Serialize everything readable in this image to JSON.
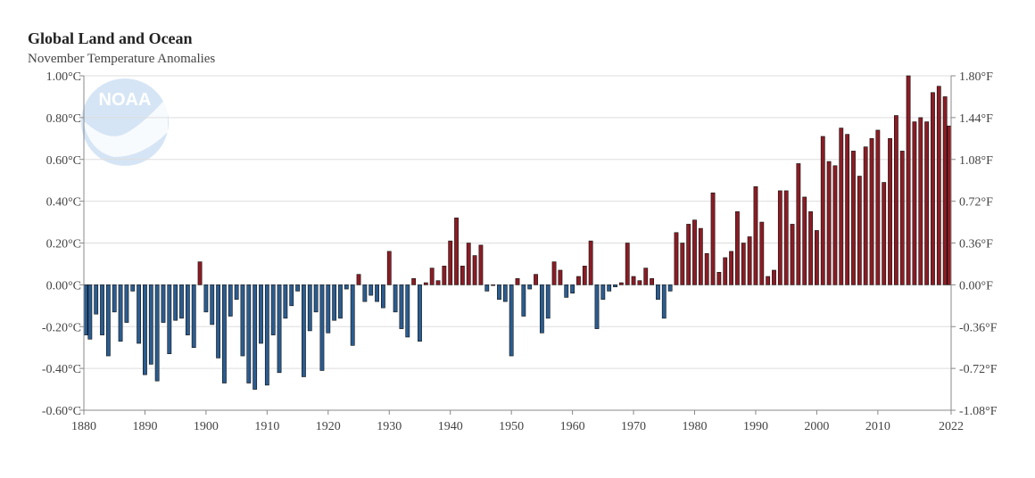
{
  "header": {
    "title": "Global Land and Ocean",
    "subtitle": "November Temperature Anomalies"
  },
  "logo": {
    "text": "NOAA"
  },
  "chart_data": {
    "type": "bar",
    "title": "Global Land and Ocean",
    "subtitle": "November Temperature Anomalies",
    "xlabel": "",
    "ylabel": "",
    "x_range": [
      1880,
      2022
    ],
    "ylim": [
      -0.6,
      1.0
    ],
    "grid": true,
    "legend": "none",
    "colors": {
      "positive": "#8b1c24",
      "negative": "#2b5c8f",
      "bar_stroke": "#111111",
      "grid": "#dddddd"
    },
    "x_ticks": [
      "1880",
      "1890",
      "1900",
      "1910",
      "1920",
      "1930",
      "1940",
      "1950",
      "1960",
      "1970",
      "1980",
      "1990",
      "2000",
      "2010",
      "2022"
    ],
    "y_ticks_left": [
      "1.00°C",
      "0.80°C",
      "0.60°C",
      "0.40°C",
      "0.20°C",
      "0.00°C",
      "-0.20°C",
      "-0.40°C",
      "-0.60°C"
    ],
    "y_ticks_right": [
      "1.80°F",
      "1.44°F",
      "1.08°F",
      "0.72°F",
      "0.36°F",
      "0.00°F",
      "-0.36°F",
      "-0.72°F",
      "-1.08°F"
    ],
    "x": [
      1880,
      1881,
      1882,
      1883,
      1884,
      1885,
      1886,
      1887,
      1888,
      1889,
      1890,
      1891,
      1892,
      1893,
      1894,
      1895,
      1896,
      1897,
      1898,
      1899,
      1900,
      1901,
      1902,
      1903,
      1904,
      1905,
      1906,
      1907,
      1908,
      1909,
      1910,
      1911,
      1912,
      1913,
      1914,
      1915,
      1916,
      1917,
      1918,
      1919,
      1920,
      1921,
      1922,
      1923,
      1924,
      1925,
      1926,
      1927,
      1928,
      1929,
      1930,
      1931,
      1932,
      1933,
      1934,
      1935,
      1936,
      1937,
      1938,
      1939,
      1940,
      1941,
      1942,
      1943,
      1944,
      1945,
      1946,
      1947,
      1948,
      1949,
      1950,
      1951,
      1952,
      1953,
      1954,
      1955,
      1956,
      1957,
      1958,
      1959,
      1960,
      1961,
      1962,
      1963,
      1964,
      1965,
      1966,
      1967,
      1968,
      1969,
      1970,
      1971,
      1972,
      1973,
      1974,
      1975,
      1976,
      1977,
      1978,
      1979,
      1980,
      1981,
      1982,
      1983,
      1984,
      1985,
      1986,
      1987,
      1988,
      1989,
      1990,
      1991,
      1992,
      1993,
      1994,
      1995,
      1996,
      1997,
      1998,
      1999,
      2000,
      2001,
      2002,
      2003,
      2004,
      2005,
      2006,
      2007,
      2008,
      2009,
      2010,
      2011,
      2012,
      2013,
      2014,
      2015,
      2016,
      2017,
      2018,
      2019,
      2020,
      2021,
      2022
    ],
    "values": [
      -0.24,
      -0.26,
      -0.14,
      -0.24,
      -0.34,
      -0.13,
      -0.27,
      -0.18,
      -0.03,
      -0.28,
      -0.43,
      -0.38,
      -0.46,
      -0.18,
      -0.33,
      -0.17,
      -0.16,
      -0.24,
      -0.3,
      0.11,
      -0.13,
      -0.19,
      -0.35,
      -0.47,
      -0.15,
      -0.07,
      -0.34,
      -0.47,
      -0.5,
      -0.28,
      -0.48,
      -0.24,
      -0.42,
      -0.16,
      -0.1,
      -0.03,
      -0.44,
      -0.22,
      -0.13,
      -0.41,
      -0.23,
      -0.17,
      -0.16,
      -0.02,
      -0.29,
      0.05,
      -0.08,
      -0.05,
      -0.08,
      -0.11,
      0.16,
      -0.13,
      -0.21,
      -0.25,
      0.03,
      -0.27,
      0.01,
      0.08,
      0.02,
      0.09,
      0.21,
      0.32,
      0.09,
      0.2,
      0.14,
      0.19,
      -0.03,
      0.0,
      -0.07,
      -0.08,
      -0.34,
      0.03,
      -0.15,
      -0.02,
      0.05,
      -0.23,
      -0.16,
      0.11,
      0.07,
      -0.06,
      -0.04,
      0.04,
      0.09,
      0.21,
      -0.21,
      -0.07,
      -0.03,
      -0.01,
      0.01,
      0.2,
      0.04,
      0.02,
      0.08,
      0.03,
      -0.07,
      -0.16,
      -0.03,
      0.25,
      0.2,
      0.29,
      0.31,
      0.27,
      0.15,
      0.44,
      0.06,
      0.13,
      0.16,
      0.35,
      0.2,
      0.23,
      0.47,
      0.3,
      0.04,
      0.07,
      0.45,
      0.45,
      0.29,
      0.58,
      0.42,
      0.35,
      0.26,
      0.71,
      0.59,
      0.57,
      0.75,
      0.72,
      0.64,
      0.52,
      0.66,
      0.7,
      0.74,
      0.49,
      0.7,
      0.81,
      0.64,
      1.0,
      0.78,
      0.8,
      0.78,
      0.92,
      0.95,
      0.9,
      0.76
    ]
  }
}
